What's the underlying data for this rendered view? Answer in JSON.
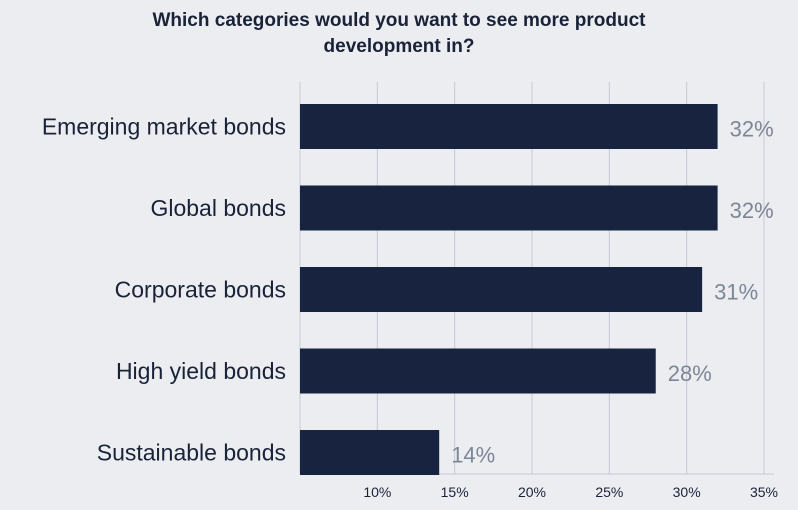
{
  "chart_data": {
    "type": "bar",
    "orientation": "horizontal",
    "title": "Which categories would you want to see more product development in?",
    "title_lines": [
      "Which categories would you want to see more product",
      "development in?"
    ],
    "categories": [
      "Emerging market bonds",
      "Global bonds",
      "Corporate bonds",
      "High yield bonds",
      "Sustainable bonds"
    ],
    "values": [
      32,
      32,
      31,
      28,
      14
    ],
    "value_labels": [
      "32%",
      "32%",
      "31%",
      "28%",
      "14%"
    ],
    "xlim": [
      5,
      35
    ],
    "xticks": [
      10,
      15,
      20,
      25,
      30,
      35
    ],
    "xtick_labels": [
      "10%",
      "15%",
      "20%",
      "25%",
      "30%",
      "35%"
    ],
    "grid": "vertical",
    "legend": "none",
    "bar_color": "#17233f",
    "value_label_color": "#7d8696",
    "grid_color": "#c5cad3",
    "background": "#ebedf1"
  }
}
